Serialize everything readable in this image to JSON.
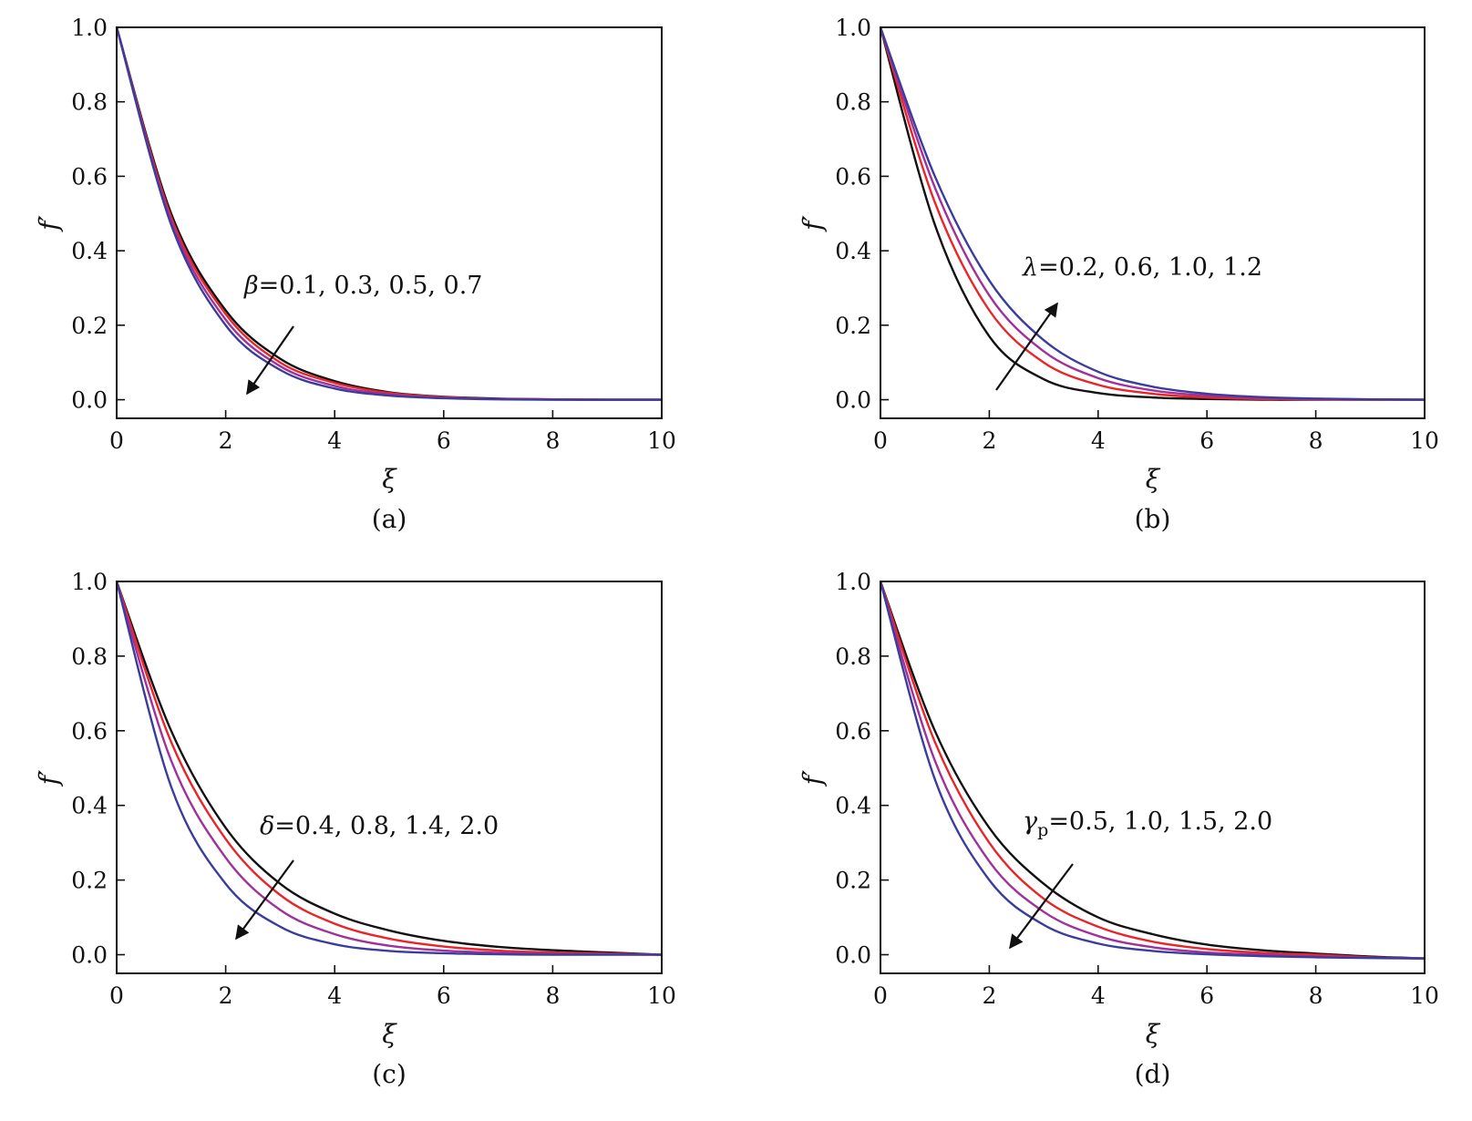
{
  "figure": {
    "colors": {
      "black": "#111111",
      "red": "#e8262a",
      "purple": "#a0309a",
      "blue": "#3a3d9c"
    }
  },
  "chart_data": [
    {
      "type": "line",
      "panel_label": "(a)",
      "xlabel": "ξ",
      "ylabel": "f′",
      "xlim": [
        0,
        10
      ],
      "ylim": [
        -0.05,
        1.0
      ],
      "x_ticks": [
        "0",
        "2",
        "4",
        "6",
        "8",
        "10"
      ],
      "y_ticks": [
        "0.0",
        "0.2",
        "0.4",
        "0.6",
        "0.8",
        "1.0"
      ],
      "annotation": {
        "symbol": "β",
        "text": "=0.1, 0.3, 0.5, 0.7",
        "direction": "down-left"
      },
      "x": [
        0,
        1,
        2,
        3,
        4,
        5,
        6,
        7,
        8,
        9,
        10
      ],
      "series": [
        {
          "color": "#111111",
          "values": [
            1.0,
            0.5,
            0.24,
            0.11,
            0.05,
            0.02,
            0.008,
            0.003,
            0.001,
            0.0,
            0.0
          ]
        },
        {
          "color": "#e8262a",
          "values": [
            1.0,
            0.49,
            0.23,
            0.1,
            0.045,
            0.018,
            0.007,
            0.002,
            0.001,
            0.0,
            0.0
          ]
        },
        {
          "color": "#a0309a",
          "values": [
            1.0,
            0.48,
            0.215,
            0.09,
            0.037,
            0.014,
            0.005,
            0.002,
            0.0,
            0.0,
            0.0
          ]
        },
        {
          "color": "#3a3d9c",
          "values": [
            1.0,
            0.47,
            0.2,
            0.08,
            0.03,
            0.011,
            0.004,
            0.001,
            0.0,
            0.0,
            0.0
          ]
        }
      ]
    },
    {
      "type": "line",
      "panel_label": "(b)",
      "xlabel": "ξ",
      "ylabel": "f′",
      "xlim": [
        0,
        10
      ],
      "ylim": [
        -0.05,
        1.0
      ],
      "x_ticks": [
        "0",
        "2",
        "4",
        "6",
        "8",
        "10"
      ],
      "y_ticks": [
        "0.0",
        "0.2",
        "0.4",
        "0.6",
        "0.8",
        "1.0"
      ],
      "annotation": {
        "symbol": "λ",
        "text": "=0.2, 0.6, 1.0, 1.2",
        "direction": "up-right"
      },
      "x": [
        0,
        1,
        2,
        3,
        4,
        5,
        6,
        7,
        8,
        9,
        10
      ],
      "series": [
        {
          "color": "#111111",
          "values": [
            1.0,
            0.47,
            0.17,
            0.055,
            0.018,
            0.006,
            0.002,
            0.0,
            0.0,
            0.0,
            0.0
          ]
        },
        {
          "color": "#e8262a",
          "values": [
            1.0,
            0.53,
            0.24,
            0.1,
            0.04,
            0.016,
            0.006,
            0.002,
            0.001,
            0.0,
            0.0
          ]
        },
        {
          "color": "#a0309a",
          "values": [
            1.0,
            0.57,
            0.28,
            0.13,
            0.058,
            0.025,
            0.011,
            0.005,
            0.002,
            0.001,
            0.0
          ]
        },
        {
          "color": "#3a3d9c",
          "values": [
            1.0,
            0.6,
            0.32,
            0.16,
            0.075,
            0.035,
            0.016,
            0.007,
            0.003,
            0.001,
            0.0
          ]
        }
      ]
    },
    {
      "type": "line",
      "panel_label": "(c)",
      "xlabel": "ξ",
      "ylabel": "f′",
      "xlim": [
        0,
        10
      ],
      "ylim": [
        -0.05,
        1.0
      ],
      "x_ticks": [
        "0",
        "2",
        "4",
        "6",
        "8",
        "10"
      ],
      "y_ticks": [
        "0.0",
        "0.2",
        "0.4",
        "0.6",
        "0.8",
        "1.0"
      ],
      "annotation": {
        "symbol": "δ",
        "text": "=0.4, 0.8, 1.4, 2.0",
        "direction": "down-left"
      },
      "x": [
        0,
        1,
        2,
        3,
        4,
        5,
        6,
        7,
        8,
        9,
        10
      ],
      "series": [
        {
          "color": "#111111",
          "values": [
            1.0,
            0.6,
            0.34,
            0.19,
            0.11,
            0.065,
            0.037,
            0.021,
            0.012,
            0.006,
            0.0
          ]
        },
        {
          "color": "#e8262a",
          "values": [
            1.0,
            0.57,
            0.31,
            0.16,
            0.083,
            0.043,
            0.022,
            0.011,
            0.006,
            0.003,
            0.0
          ]
        },
        {
          "color": "#a0309a",
          "values": [
            1.0,
            0.52,
            0.26,
            0.12,
            0.055,
            0.024,
            0.011,
            0.005,
            0.002,
            0.001,
            0.0
          ]
        },
        {
          "color": "#3a3d9c",
          "values": [
            1.0,
            0.45,
            0.19,
            0.075,
            0.028,
            0.01,
            0.004,
            0.001,
            0.0,
            0.0,
            0.0
          ]
        }
      ]
    },
    {
      "type": "line",
      "panel_label": "(d)",
      "xlabel": "ξ",
      "ylabel": "f′",
      "xlim": [
        0,
        10
      ],
      "ylim": [
        -0.05,
        1.0
      ],
      "x_ticks": [
        "0",
        "2",
        "4",
        "6",
        "8",
        "10"
      ],
      "y_ticks": [
        "0.0",
        "0.2",
        "0.4",
        "0.6",
        "0.8",
        "1.0"
      ],
      "annotation": {
        "symbol": "γ",
        "subscript": "p",
        "text": "=0.5, 1.0, 1.5, 2.0",
        "direction": "down-left"
      },
      "x": [
        0,
        1,
        2,
        3,
        4,
        5,
        6,
        7,
        8,
        9,
        10
      ],
      "series": [
        {
          "color": "#111111",
          "values": [
            1.0,
            0.6,
            0.34,
            0.19,
            0.1,
            0.055,
            0.027,
            0.012,
            0.003,
            -0.005,
            -0.01
          ]
        },
        {
          "color": "#e8262a",
          "values": [
            1.0,
            0.57,
            0.3,
            0.15,
            0.075,
            0.035,
            0.015,
            0.005,
            0.0,
            -0.007,
            -0.01
          ]
        },
        {
          "color": "#a0309a",
          "values": [
            1.0,
            0.52,
            0.25,
            0.115,
            0.05,
            0.02,
            0.006,
            0.0,
            -0.005,
            -0.008,
            -0.01
          ]
        },
        {
          "color": "#3a3d9c",
          "values": [
            1.0,
            0.47,
            0.2,
            0.08,
            0.03,
            0.01,
            0.001,
            -0.004,
            -0.007,
            -0.009,
            -0.01
          ]
        }
      ]
    }
  ]
}
